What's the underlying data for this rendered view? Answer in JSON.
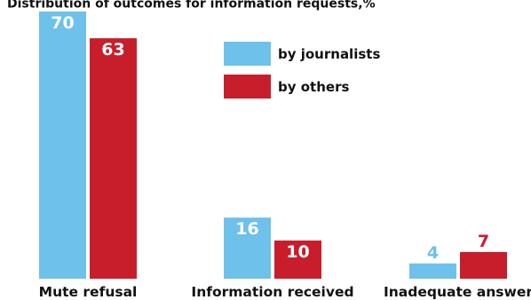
{
  "chart_data": {
    "type": "bar",
    "title": "Distribution of outcomes for information requests,%",
    "categories": [
      "Mute refusal",
      "Information received",
      "Inadequate answer"
    ],
    "series": [
      {
        "name": "by journalists",
        "values": [
          70,
          16,
          4
        ],
        "color": "#6ec1ea"
      },
      {
        "name": "by others",
        "values": [
          63,
          10,
          7
        ],
        "color": "#c81e2b"
      }
    ],
    "ylim": [
      0,
      70
    ],
    "grid": false,
    "legend_position": "top-center",
    "data_labels": true
  }
}
